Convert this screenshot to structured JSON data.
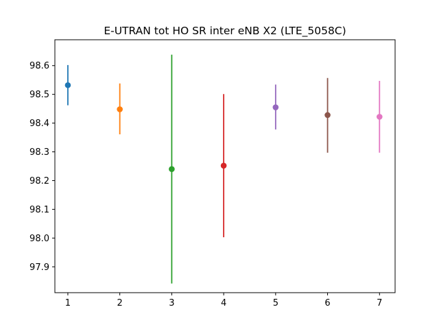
{
  "chart_data": {
    "type": "scatter",
    "title": "E-UTRAN tot HO SR inter eNB X2 (LTE_5058C)",
    "xlabel": "",
    "ylabel": "",
    "xlim": [
      0.75,
      7.3
    ],
    "ylim": [
      97.81,
      98.69
    ],
    "grid": false,
    "x_ticks": [
      1,
      2,
      3,
      4,
      5,
      6,
      7
    ],
    "y_ticks": [
      97.9,
      98.0,
      98.1,
      98.2,
      98.3,
      98.4,
      98.5,
      98.6
    ],
    "y_tick_labels": [
      "97.9",
      "98.0",
      "98.1",
      "98.2",
      "98.3",
      "98.4",
      "98.5",
      "98.6"
    ],
    "x_tick_labels": [
      "1",
      "2",
      "3",
      "4",
      "5",
      "6",
      "7"
    ],
    "points": [
      {
        "x": 1,
        "y": 98.532,
        "lower": 98.462,
        "upper": 98.602,
        "color": "#1f77b4"
      },
      {
        "x": 2,
        "y": 98.448,
        "lower": 98.361,
        "upper": 98.538,
        "color": "#ff7f0e"
      },
      {
        "x": 3,
        "y": 98.24,
        "lower": 97.842,
        "upper": 98.638,
        "color": "#2ca02c"
      },
      {
        "x": 4,
        "y": 98.252,
        "lower": 98.003,
        "upper": 98.501,
        "color": "#d62728"
      },
      {
        "x": 5,
        "y": 98.455,
        "lower": 98.378,
        "upper": 98.534,
        "color": "#9467bd"
      },
      {
        "x": 6,
        "y": 98.428,
        "lower": 98.297,
        "upper": 98.557,
        "color": "#8c564b"
      },
      {
        "x": 7,
        "y": 98.422,
        "lower": 98.297,
        "upper": 98.547,
        "color": "#e377c2"
      }
    ]
  }
}
